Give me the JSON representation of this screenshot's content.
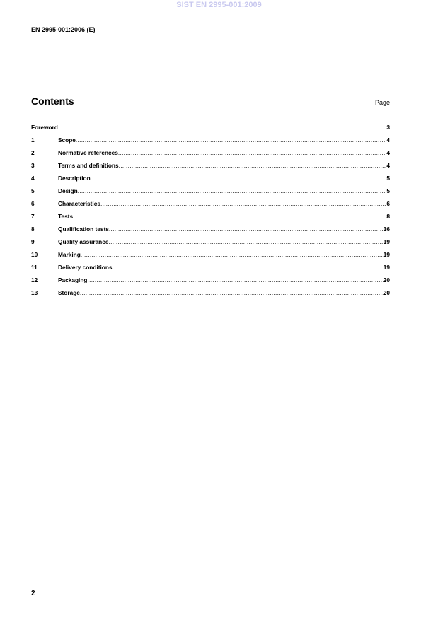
{
  "watermark": "SIST EN 2995-001:2009",
  "header": {
    "doc_id": "EN 2995-001:2006 (E)"
  },
  "contents": {
    "title": "Contents",
    "page_label": "Page",
    "entries": [
      {
        "num": "",
        "title": "Foreword",
        "page": "3"
      },
      {
        "num": "1",
        "title": "Scope",
        "page": "4"
      },
      {
        "num": "2",
        "title": "Normative references",
        "page": "4"
      },
      {
        "num": "3",
        "title": "Terms and definitions",
        "page": "4"
      },
      {
        "num": "4",
        "title": "Description",
        "page": "5"
      },
      {
        "num": "5",
        "title": "Design",
        "page": "5"
      },
      {
        "num": "6",
        "title": "Characteristics",
        "page": "6"
      },
      {
        "num": "7",
        "title": "Tests",
        "page": "8"
      },
      {
        "num": "8",
        "title": "Qualification tests",
        "page": "16"
      },
      {
        "num": "9",
        "title": "Quality assurance",
        "page": "19"
      },
      {
        "num": "10",
        "title": "Marking",
        "page": "19"
      },
      {
        "num": "11",
        "title": "Delivery conditions",
        "page": "19"
      },
      {
        "num": "12",
        "title": "Packaging",
        "page": "20"
      },
      {
        "num": "13",
        "title": "Storage",
        "page": "20"
      }
    ]
  },
  "footer": {
    "page_number": "2"
  }
}
